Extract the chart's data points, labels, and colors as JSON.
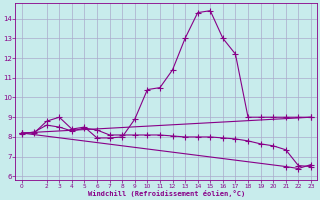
{
  "xlabel": "Windchill (Refroidissement éolien,°C)",
  "bg_color": "#c8ecec",
  "grid_color": "#aaaacc",
  "line_color": "#880088",
  "xlim": [
    -0.5,
    23.5
  ],
  "ylim": [
    5.8,
    14.8
  ],
  "yticks": [
    6,
    7,
    8,
    9,
    10,
    11,
    12,
    13,
    14
  ],
  "xticks": [
    0,
    2,
    3,
    4,
    5,
    6,
    7,
    8,
    9,
    10,
    11,
    12,
    13,
    14,
    15,
    16,
    17,
    18,
    19,
    20,
    21,
    22,
    23
  ],
  "curve1_x": [
    0,
    1,
    2,
    3,
    4,
    5,
    6,
    7,
    8,
    9,
    10,
    11,
    12,
    13,
    14,
    15,
    16,
    17,
    18,
    19,
    20,
    21,
    22,
    23
  ],
  "curve1_y": [
    8.2,
    8.2,
    8.8,
    9.0,
    8.4,
    8.5,
    7.95,
    7.95,
    8.0,
    8.9,
    10.4,
    10.5,
    11.4,
    13.0,
    14.3,
    14.4,
    13.0,
    12.2,
    9.0,
    9.0,
    9.0,
    9.0,
    9.0,
    9.0
  ],
  "curve2_x": [
    0,
    1,
    2,
    3,
    4,
    5,
    6,
    7,
    8,
    9,
    10,
    11,
    12,
    13,
    14,
    15,
    16,
    17,
    18,
    19,
    20,
    21,
    22,
    23
  ],
  "curve2_y": [
    8.15,
    8.25,
    8.6,
    8.5,
    8.3,
    8.45,
    8.35,
    8.1,
    8.1,
    8.1,
    8.1,
    8.1,
    8.05,
    8.0,
    8.0,
    8.0,
    7.95,
    7.9,
    7.8,
    7.65,
    7.55,
    7.35,
    6.55,
    6.5
  ],
  "curve3_x": [
    0,
    23
  ],
  "curve3_y": [
    8.2,
    9.0
  ],
  "curve4_x": [
    0,
    21,
    22,
    23
  ],
  "curve4_y": [
    8.2,
    6.5,
    6.4,
    6.6
  ]
}
